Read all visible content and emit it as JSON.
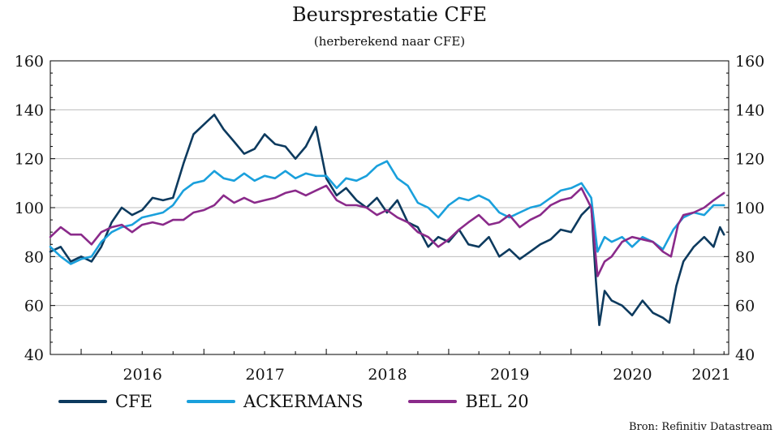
{
  "chart_data": {
    "type": "line",
    "title": "Beursprestatie CFE",
    "subtitle": "(herberekend naar CFE)",
    "ylim": [
      40,
      160
    ],
    "yticks": [
      "40",
      "60",
      "80",
      "100",
      "120",
      "140",
      "160"
    ],
    "xticks": [
      "2016",
      "2017",
      "2018",
      "2019",
      "2020",
      "2021"
    ],
    "xlim": [
      "2015-10-01",
      "2021-04-15"
    ],
    "grid": true,
    "legend_position": "bottom",
    "source": "Bron: Refinitiv Datastream",
    "series": [
      {
        "name": "CFE",
        "color": "#0d3a5e",
        "points": [
          [
            "2015-10-01",
            82
          ],
          [
            "2015-11-01",
            84
          ],
          [
            "2015-12-01",
            78
          ],
          [
            "2016-01-01",
            80
          ],
          [
            "2016-02-01",
            78
          ],
          [
            "2016-03-01",
            84
          ],
          [
            "2016-04-01",
            94
          ],
          [
            "2016-05-01",
            100
          ],
          [
            "2016-06-01",
            97
          ],
          [
            "2016-07-01",
            99
          ],
          [
            "2016-08-01",
            104
          ],
          [
            "2016-09-01",
            103
          ],
          [
            "2016-10-01",
            104
          ],
          [
            "2016-11-01",
            118
          ],
          [
            "2016-12-01",
            130
          ],
          [
            "2017-01-01",
            134
          ],
          [
            "2017-02-01",
            138
          ],
          [
            "2017-03-01",
            132
          ],
          [
            "2017-04-01",
            127
          ],
          [
            "2017-05-01",
            122
          ],
          [
            "2017-06-01",
            124
          ],
          [
            "2017-07-01",
            130
          ],
          [
            "2017-08-01",
            126
          ],
          [
            "2017-09-01",
            125
          ],
          [
            "2017-10-01",
            120
          ],
          [
            "2017-11-01",
            125
          ],
          [
            "2017-12-01",
            133
          ],
          [
            "2018-01-01",
            112
          ],
          [
            "2018-02-01",
            105
          ],
          [
            "2018-03-01",
            108
          ],
          [
            "2018-04-01",
            103
          ],
          [
            "2018-05-01",
            100
          ],
          [
            "2018-06-01",
            104
          ],
          [
            "2018-07-01",
            98
          ],
          [
            "2018-08-01",
            103
          ],
          [
            "2018-09-01",
            94
          ],
          [
            "2018-10-01",
            92
          ],
          [
            "2018-11-01",
            84
          ],
          [
            "2018-12-01",
            88
          ],
          [
            "2019-01-01",
            86
          ],
          [
            "2019-02-01",
            91
          ],
          [
            "2019-03-01",
            85
          ],
          [
            "2019-04-01",
            84
          ],
          [
            "2019-05-01",
            88
          ],
          [
            "2019-06-01",
            80
          ],
          [
            "2019-07-01",
            83
          ],
          [
            "2019-08-01",
            79
          ],
          [
            "2019-09-01",
            82
          ],
          [
            "2019-10-01",
            85
          ],
          [
            "2019-11-01",
            87
          ],
          [
            "2019-12-01",
            91
          ],
          [
            "2020-01-01",
            90
          ],
          [
            "2020-02-01",
            97
          ],
          [
            "2020-03-01",
            101
          ],
          [
            "2020-03-15",
            70
          ],
          [
            "2020-03-25",
            52
          ],
          [
            "2020-04-10",
            66
          ],
          [
            "2020-05-01",
            62
          ],
          [
            "2020-06-01",
            60
          ],
          [
            "2020-07-01",
            56
          ],
          [
            "2020-08-01",
            62
          ],
          [
            "2020-09-01",
            57
          ],
          [
            "2020-10-01",
            55
          ],
          [
            "2020-10-20",
            53
          ],
          [
            "2020-11-10",
            68
          ],
          [
            "2020-12-01",
            78
          ],
          [
            "2021-01-01",
            84
          ],
          [
            "2021-02-01",
            88
          ],
          [
            "2021-03-01",
            84
          ],
          [
            "2021-03-20",
            92
          ],
          [
            "2021-04-01",
            89
          ]
        ]
      },
      {
        "name": "ACKERMANS",
        "color": "#1aa0dc",
        "points": [
          [
            "2015-10-01",
            84
          ],
          [
            "2015-11-01",
            80
          ],
          [
            "2015-12-01",
            77
          ],
          [
            "2016-01-01",
            79
          ],
          [
            "2016-02-01",
            80
          ],
          [
            "2016-03-01",
            86
          ],
          [
            "2016-04-01",
            90
          ],
          [
            "2016-05-01",
            92
          ],
          [
            "2016-06-01",
            93
          ],
          [
            "2016-07-01",
            96
          ],
          [
            "2016-08-01",
            97
          ],
          [
            "2016-09-01",
            98
          ],
          [
            "2016-10-01",
            101
          ],
          [
            "2016-11-01",
            107
          ],
          [
            "2016-12-01",
            110
          ],
          [
            "2017-01-01",
            111
          ],
          [
            "2017-02-01",
            115
          ],
          [
            "2017-03-01",
            112
          ],
          [
            "2017-04-01",
            111
          ],
          [
            "2017-05-01",
            114
          ],
          [
            "2017-06-01",
            111
          ],
          [
            "2017-07-01",
            113
          ],
          [
            "2017-08-01",
            112
          ],
          [
            "2017-09-01",
            115
          ],
          [
            "2017-10-01",
            112
          ],
          [
            "2017-11-01",
            114
          ],
          [
            "2017-12-01",
            113
          ],
          [
            "2018-01-01",
            113
          ],
          [
            "2018-02-01",
            108
          ],
          [
            "2018-03-01",
            112
          ],
          [
            "2018-04-01",
            111
          ],
          [
            "2018-05-01",
            113
          ],
          [
            "2018-06-01",
            117
          ],
          [
            "2018-07-01",
            119
          ],
          [
            "2018-08-01",
            112
          ],
          [
            "2018-09-01",
            109
          ],
          [
            "2018-10-01",
            102
          ],
          [
            "2018-11-01",
            100
          ],
          [
            "2018-12-01",
            96
          ],
          [
            "2019-01-01",
            101
          ],
          [
            "2019-02-01",
            104
          ],
          [
            "2019-03-01",
            103
          ],
          [
            "2019-04-01",
            105
          ],
          [
            "2019-05-01",
            103
          ],
          [
            "2019-06-01",
            98
          ],
          [
            "2019-07-01",
            96
          ],
          [
            "2019-08-01",
            98
          ],
          [
            "2019-09-01",
            100
          ],
          [
            "2019-10-01",
            101
          ],
          [
            "2019-11-01",
            104
          ],
          [
            "2019-12-01",
            107
          ],
          [
            "2020-01-01",
            108
          ],
          [
            "2020-02-01",
            110
          ],
          [
            "2020-03-01",
            104
          ],
          [
            "2020-03-20",
            82
          ],
          [
            "2020-04-10",
            88
          ],
          [
            "2020-05-01",
            86
          ],
          [
            "2020-06-01",
            88
          ],
          [
            "2020-07-01",
            84
          ],
          [
            "2020-08-01",
            88
          ],
          [
            "2020-09-01",
            86
          ],
          [
            "2020-10-01",
            83
          ],
          [
            "2020-11-01",
            91
          ],
          [
            "2020-12-01",
            96
          ],
          [
            "2021-01-01",
            98
          ],
          [
            "2021-02-01",
            97
          ],
          [
            "2021-03-01",
            101
          ],
          [
            "2021-04-01",
            101
          ]
        ]
      },
      {
        "name": "BEL 20",
        "color": "#8a2a8a",
        "points": [
          [
            "2015-10-01",
            88
          ],
          [
            "2015-11-01",
            92
          ],
          [
            "2015-12-01",
            89
          ],
          [
            "2016-01-01",
            89
          ],
          [
            "2016-02-01",
            85
          ],
          [
            "2016-03-01",
            90
          ],
          [
            "2016-04-01",
            92
          ],
          [
            "2016-05-01",
            93
          ],
          [
            "2016-06-01",
            90
          ],
          [
            "2016-07-01",
            93
          ],
          [
            "2016-08-01",
            94
          ],
          [
            "2016-09-01",
            93
          ],
          [
            "2016-10-01",
            95
          ],
          [
            "2016-11-01",
            95
          ],
          [
            "2016-12-01",
            98
          ],
          [
            "2017-01-01",
            99
          ],
          [
            "2017-02-01",
            101
          ],
          [
            "2017-03-01",
            105
          ],
          [
            "2017-04-01",
            102
          ],
          [
            "2017-05-01",
            104
          ],
          [
            "2017-06-01",
            102
          ],
          [
            "2017-07-01",
            103
          ],
          [
            "2017-08-01",
            104
          ],
          [
            "2017-09-01",
            106
          ],
          [
            "2017-10-01",
            107
          ],
          [
            "2017-11-01",
            105
          ],
          [
            "2017-12-01",
            107
          ],
          [
            "2018-01-01",
            109
          ],
          [
            "2018-02-01",
            103
          ],
          [
            "2018-03-01",
            101
          ],
          [
            "2018-04-01",
            101
          ],
          [
            "2018-05-01",
            100
          ],
          [
            "2018-06-01",
            97
          ],
          [
            "2018-07-01",
            99
          ],
          [
            "2018-08-01",
            96
          ],
          [
            "2018-09-01",
            94
          ],
          [
            "2018-10-01",
            90
          ],
          [
            "2018-11-01",
            88
          ],
          [
            "2018-12-01",
            84
          ],
          [
            "2019-01-01",
            87
          ],
          [
            "2019-02-01",
            91
          ],
          [
            "2019-03-01",
            94
          ],
          [
            "2019-04-01",
            97
          ],
          [
            "2019-05-01",
            93
          ],
          [
            "2019-06-01",
            94
          ],
          [
            "2019-07-01",
            97
          ],
          [
            "2019-08-01",
            92
          ],
          [
            "2019-09-01",
            95
          ],
          [
            "2019-10-01",
            97
          ],
          [
            "2019-11-01",
            101
          ],
          [
            "2019-12-01",
            103
          ],
          [
            "2020-01-01",
            104
          ],
          [
            "2020-02-01",
            108
          ],
          [
            "2020-03-01",
            100
          ],
          [
            "2020-03-20",
            72
          ],
          [
            "2020-04-10",
            78
          ],
          [
            "2020-05-01",
            80
          ],
          [
            "2020-06-01",
            86
          ],
          [
            "2020-07-01",
            88
          ],
          [
            "2020-08-01",
            87
          ],
          [
            "2020-09-01",
            86
          ],
          [
            "2020-10-01",
            82
          ],
          [
            "2020-10-25",
            80
          ],
          [
            "2020-11-15",
            93
          ],
          [
            "2020-12-01",
            97
          ],
          [
            "2021-01-01",
            98
          ],
          [
            "2021-02-01",
            100
          ],
          [
            "2021-03-01",
            103
          ],
          [
            "2021-04-01",
            106
          ]
        ]
      }
    ]
  }
}
